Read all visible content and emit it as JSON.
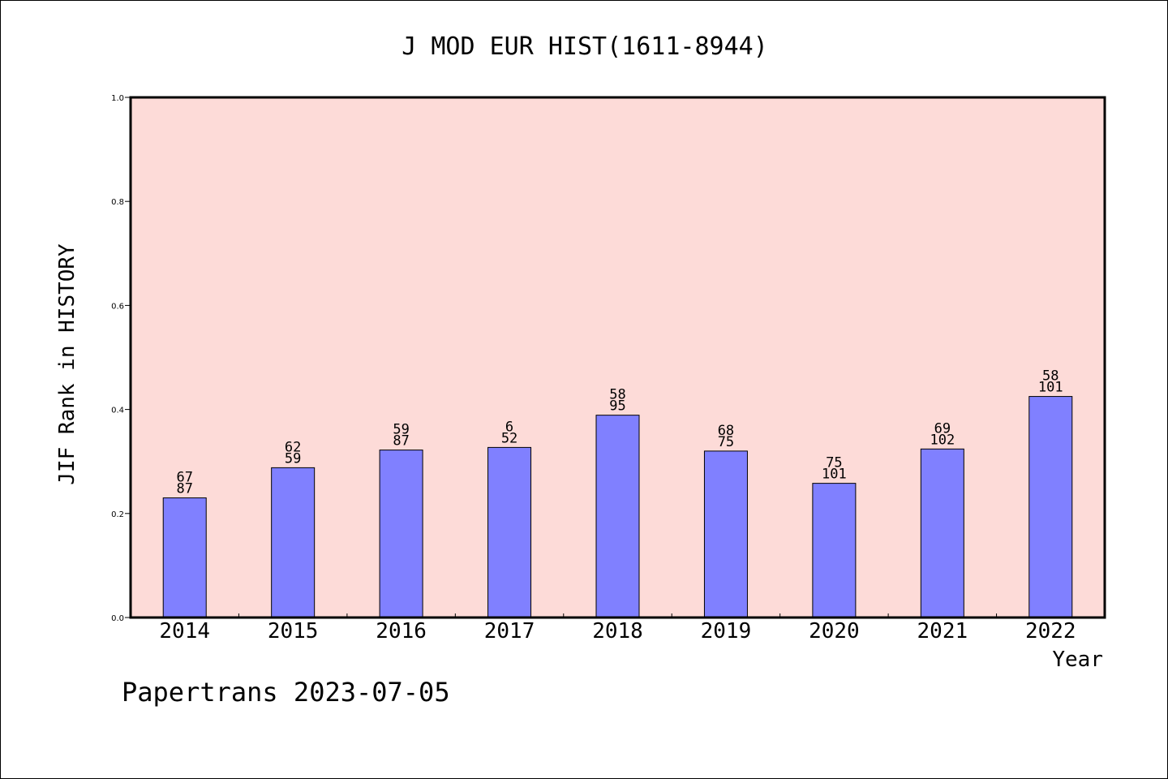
{
  "title": "J MOD EUR HIST(1611-8944)",
  "footer": "Papertrans 2023-07-05",
  "colors": {
    "plot_background": "#fddbd8",
    "bar_fill": "#8080ff",
    "bar_stroke": "#000000",
    "frame": "#000000"
  },
  "chart_data": {
    "type": "bar",
    "title": "J MOD EUR HIST(1611-8944)",
    "xlabel": "Year",
    "ylabel": "JIF Rank in HISTORY",
    "categories": [
      "2014",
      "2015",
      "2016",
      "2017",
      "2018",
      "2019",
      "2020",
      "2021",
      "2022"
    ],
    "values": [
      0.23,
      0.288,
      0.322,
      0.327,
      0.389,
      0.32,
      0.258,
      0.324,
      0.425
    ],
    "labels_top": [
      "67",
      "62",
      "59",
      "6",
      "58",
      "68",
      "75",
      "69",
      "58"
    ],
    "labels_bottom": [
      "87",
      "59",
      "87",
      "52",
      "95",
      "75",
      "101",
      "102",
      "101"
    ],
    "ylim": [
      0,
      1.0
    ],
    "yticks": [
      "0.0",
      "0.2",
      "0.4",
      "0.6",
      "0.8",
      "1.0"
    ],
    "grid": false,
    "legend": "none"
  }
}
